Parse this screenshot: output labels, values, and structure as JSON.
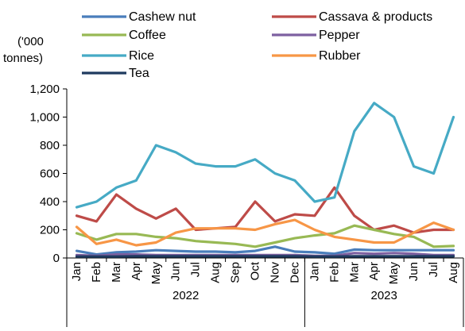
{
  "chart_data": {
    "type": "line",
    "ylabel_lines": [
      "('000",
      "tonnes)"
    ],
    "ylim": [
      0,
      1200
    ],
    "yticks": [
      0,
      200,
      400,
      600,
      800,
      1000,
      1200
    ],
    "ytick_labels": [
      "0",
      "200",
      "400",
      "600",
      "800",
      "1,000",
      "1,200"
    ],
    "categories": [
      "Jan",
      "Feb",
      "Mar",
      "Apr",
      "May",
      "Jun",
      "Jul",
      "Aug",
      "Sep",
      "Oct",
      "Nov",
      "Dec",
      "Jan",
      "Feb",
      "Mar",
      "Apr",
      "May",
      "Jun",
      "Jul",
      "Aug"
    ],
    "year_groups": [
      {
        "label": "2022",
        "start": 0,
        "count": 12
      },
      {
        "label": "2023",
        "start": 12,
        "count": 8
      }
    ],
    "grid": false,
    "legend_position": "top",
    "series": [
      {
        "name": "Cashew nut",
        "color": "#4a7ebb",
        "values": [
          50,
          25,
          40,
          45,
          55,
          50,
          45,
          45,
          40,
          50,
          80,
          45,
          40,
          30,
          60,
          55,
          55,
          55,
          55,
          55
        ]
      },
      {
        "name": "Cassava & products",
        "color": "#be4b48",
        "values": [
          300,
          260,
          450,
          350,
          280,
          350,
          200,
          210,
          220,
          400,
          260,
          310,
          300,
          500,
          300,
          200,
          230,
          180,
          200,
          200
        ]
      },
      {
        "name": "Coffee",
        "color": "#98b954",
        "values": [
          175,
          130,
          170,
          170,
          150,
          140,
          120,
          110,
          100,
          80,
          110,
          140,
          160,
          175,
          230,
          200,
          170,
          150,
          80,
          85
        ]
      },
      {
        "name": "Pepper",
        "color": "#7d60a0",
        "values": [
          20,
          15,
          25,
          25,
          20,
          20,
          20,
          20,
          20,
          20,
          20,
          20,
          15,
          15,
          35,
          30,
          35,
          30,
          20,
          20
        ]
      },
      {
        "name": "Rice",
        "color": "#46aac5",
        "values": [
          360,
          400,
          500,
          550,
          800,
          750,
          670,
          650,
          650,
          700,
          600,
          550,
          400,
          430,
          900,
          1100,
          1000,
          650,
          600,
          1000
        ]
      },
      {
        "name": "Rubber",
        "color": "#f79646",
        "values": [
          220,
          100,
          130,
          90,
          110,
          180,
          210,
          210,
          210,
          200,
          240,
          270,
          200,
          150,
          130,
          110,
          110,
          180,
          250,
          200
        ]
      },
      {
        "name": "Tea",
        "color": "#1f3a5f",
        "values": [
          10,
          10,
          10,
          12,
          12,
          12,
          12,
          12,
          12,
          12,
          12,
          12,
          10,
          10,
          12,
          12,
          12,
          12,
          12,
          12
        ]
      }
    ]
  }
}
